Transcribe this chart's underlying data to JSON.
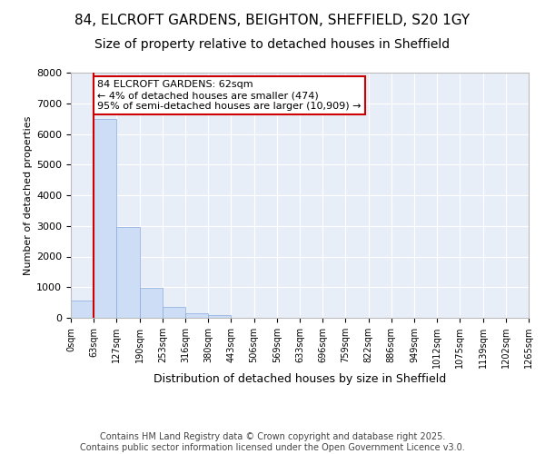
{
  "title_line1": "84, ELCROFT GARDENS, BEIGHTON, SHEFFIELD, S20 1GY",
  "title_line2": "Size of property relative to detached houses in Sheffield",
  "xlabel": "Distribution of detached houses by size in Sheffield",
  "ylabel": "Number of detached properties",
  "bar_color": "#ccddf5",
  "bar_edgecolor": "#88aadd",
  "background_color": "#e8eef8",
  "grid_color": "#ffffff",
  "bin_labels": [
    "0sqm",
    "63sqm",
    "127sqm",
    "190sqm",
    "253sqm",
    "316sqm",
    "380sqm",
    "443sqm",
    "506sqm",
    "569sqm",
    "633sqm",
    "696sqm",
    "759sqm",
    "822sqm",
    "886sqm",
    "949sqm",
    "1012sqm",
    "1075sqm",
    "1139sqm",
    "1202sqm",
    "1265sqm"
  ],
  "values": [
    550,
    6480,
    2970,
    970,
    360,
    160,
    90,
    0,
    0,
    0,
    0,
    0,
    0,
    0,
    0,
    0,
    0,
    0,
    0,
    0
  ],
  "ylim": [
    0,
    8000
  ],
  "yticks": [
    0,
    1000,
    2000,
    3000,
    4000,
    5000,
    6000,
    7000,
    8000
  ],
  "vline_x": 1.0,
  "annotation_line1": "84 ELCROFT GARDENS: 62sqm",
  "annotation_line2": "← 4% of detached houses are smaller (474)",
  "annotation_line3": "95% of semi-detached houses are larger (10,909) →",
  "annotation_box_edgecolor": "#cc0000",
  "vline_color": "#cc0000",
  "footer_line1": "Contains HM Land Registry data © Crown copyright and database right 2025.",
  "footer_line2": "Contains public sector information licensed under the Open Government Licence v3.0.",
  "title_fontsize": 11,
  "subtitle_fontsize": 10,
  "tick_fontsize": 7,
  "ylabel_fontsize": 8,
  "xlabel_fontsize": 9,
  "annotation_fontsize": 8,
  "footer_fontsize": 7
}
